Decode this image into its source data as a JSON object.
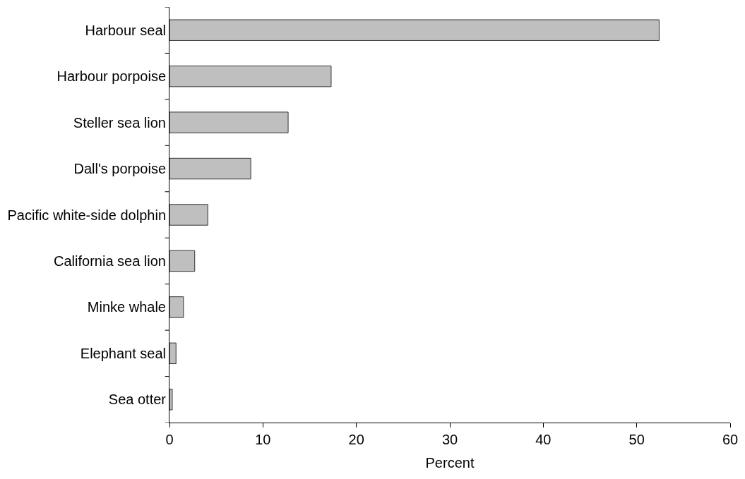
{
  "chart_data": {
    "type": "bar",
    "orientation": "horizontal",
    "categories": [
      "Harbour seal",
      "Harbour porpoise",
      "Steller sea lion",
      "Dall's porpoise",
      "Pacific white-side dolphin",
      "California sea lion",
      "Minke whale",
      "Elephant seal",
      "Sea otter"
    ],
    "values": [
      52.4,
      17.3,
      12.7,
      8.7,
      4.1,
      2.7,
      1.5,
      0.7,
      0.3
    ],
    "color": "#bfbfbf",
    "xlabel": "Percent",
    "xlim": [
      0,
      60
    ],
    "xticks": [
      0,
      10,
      20,
      30,
      40,
      50,
      60
    ]
  }
}
